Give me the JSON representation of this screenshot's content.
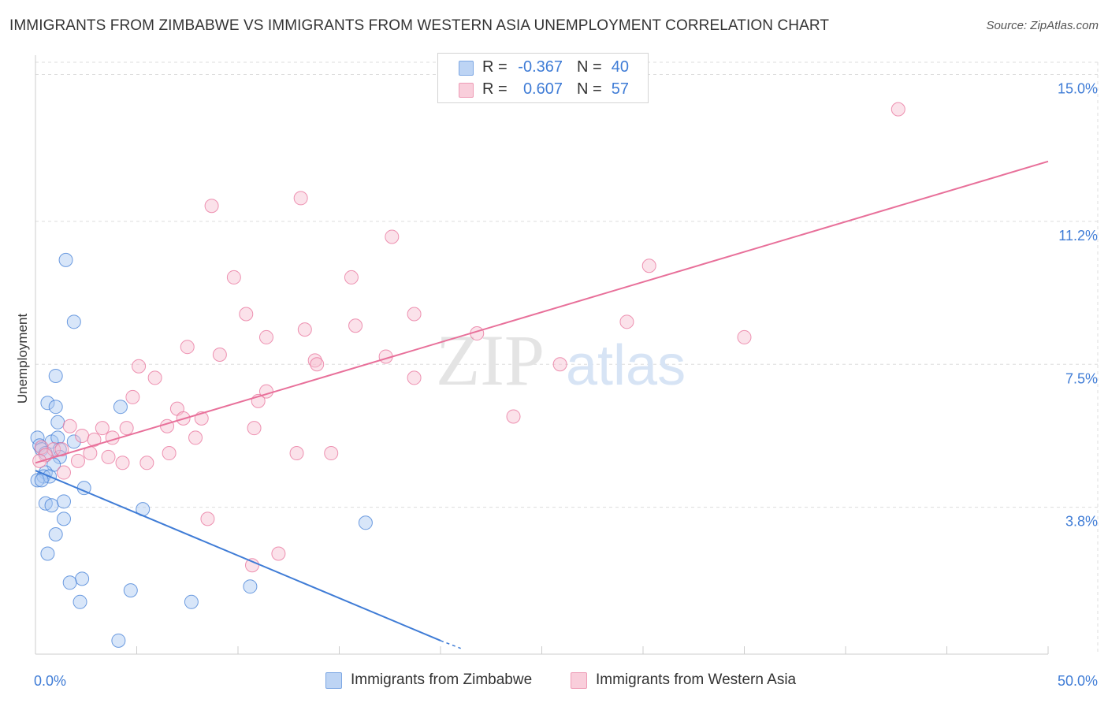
{
  "chart_data": {
    "type": "scatter",
    "title": "IMMIGRANTS FROM ZIMBABWE VS IMMIGRANTS FROM WESTERN ASIA UNEMPLOYMENT CORRELATION CHART",
    "source": "Source: ZipAtlas.com",
    "xlabel": "",
    "ylabel": "Unemployment",
    "xlim": [
      0,
      50
    ],
    "ylim": [
      0,
      15.5
    ],
    "x_tick_labels": [
      "0.0%",
      "50.0%"
    ],
    "y_ticks": [
      3.8,
      7.5,
      11.2,
      15.0
    ],
    "y_tick_labels": [
      "3.8%",
      "7.5%",
      "11.2%",
      "15.0%"
    ],
    "watermark": {
      "part1": "ZIP",
      "part2": "atlas"
    },
    "series": [
      {
        "name": "Immigrants from Zimbabwe",
        "color": "#3f7cd6",
        "fill": "#a9c7f1",
        "R": "-0.367",
        "N": "40",
        "trend": {
          "x0": 0,
          "y0": 4.75,
          "x1": 20,
          "y1": 0.35
        },
        "trend_dash": {
          "x0": 20,
          "y0": 0.35,
          "x1": 21,
          "y1": 0.15
        },
        "points": [
          [
            1.5,
            10.2
          ],
          [
            1.9,
            8.6
          ],
          [
            1.0,
            7.2
          ],
          [
            0.6,
            6.5
          ],
          [
            1.0,
            6.4
          ],
          [
            4.2,
            6.4
          ],
          [
            1.1,
            6.0
          ],
          [
            0.1,
            5.6
          ],
          [
            0.2,
            5.4
          ],
          [
            0.3,
            5.3
          ],
          [
            0.8,
            5.5
          ],
          [
            1.1,
            5.6
          ],
          [
            1.9,
            5.5
          ],
          [
            0.5,
            5.2
          ],
          [
            1.2,
            5.3
          ],
          [
            1.2,
            5.1
          ],
          [
            0.9,
            4.9
          ],
          [
            0.5,
            4.7
          ],
          [
            0.4,
            4.6
          ],
          [
            0.7,
            4.6
          ],
          [
            0.1,
            4.5
          ],
          [
            0.3,
            4.5
          ],
          [
            2.4,
            4.3
          ],
          [
            0.5,
            3.9
          ],
          [
            0.8,
            3.85
          ],
          [
            1.4,
            3.95
          ],
          [
            5.3,
            3.75
          ],
          [
            1.4,
            3.5
          ],
          [
            16.3,
            3.4
          ],
          [
            1.0,
            3.1
          ],
          [
            0.6,
            2.6
          ],
          [
            2.3,
            1.95
          ],
          [
            1.7,
            1.85
          ],
          [
            4.7,
            1.65
          ],
          [
            10.6,
            1.75
          ],
          [
            2.2,
            1.35
          ],
          [
            7.7,
            1.35
          ],
          [
            4.1,
            0.35
          ]
        ]
      },
      {
        "name": "Immigrants from Western Asia",
        "color": "#e8709a",
        "fill": "#f7bfd1",
        "R": "0.607",
        "N": "57",
        "trend": {
          "x0": 0,
          "y0": 4.95,
          "x1": 50,
          "y1": 12.75
        },
        "points": [
          [
            42.6,
            14.1
          ],
          [
            13.1,
            11.8
          ],
          [
            8.7,
            11.6
          ],
          [
            17.6,
            10.8
          ],
          [
            30.3,
            10.05
          ],
          [
            9.8,
            9.75
          ],
          [
            15.6,
            9.75
          ],
          [
            10.4,
            8.8
          ],
          [
            18.7,
            8.8
          ],
          [
            29.2,
            8.6
          ],
          [
            15.8,
            8.5
          ],
          [
            13.3,
            8.4
          ],
          [
            21.8,
            8.3
          ],
          [
            11.4,
            8.2
          ],
          [
            35.0,
            8.2
          ],
          [
            7.5,
            7.95
          ],
          [
            9.1,
            7.75
          ],
          [
            13.8,
            7.6
          ],
          [
            17.3,
            7.7
          ],
          [
            25.9,
            7.5
          ],
          [
            13.9,
            7.5
          ],
          [
            5.1,
            7.45
          ],
          [
            5.9,
            7.15
          ],
          [
            18.7,
            7.15
          ],
          [
            11.4,
            6.8
          ],
          [
            4.8,
            6.65
          ],
          [
            11.0,
            6.55
          ],
          [
            7.0,
            6.35
          ],
          [
            7.3,
            6.1
          ],
          [
            8.2,
            6.1
          ],
          [
            23.6,
            6.15
          ],
          [
            6.5,
            5.9
          ],
          [
            10.8,
            5.85
          ],
          [
            1.7,
            5.9
          ],
          [
            3.3,
            5.85
          ],
          [
            4.5,
            5.85
          ],
          [
            2.3,
            5.65
          ],
          [
            3.8,
            5.6
          ],
          [
            7.9,
            5.6
          ],
          [
            2.9,
            5.55
          ],
          [
            0.3,
            5.35
          ],
          [
            0.9,
            5.3
          ],
          [
            1.3,
            5.3
          ],
          [
            2.7,
            5.2
          ],
          [
            0.5,
            5.15
          ],
          [
            6.6,
            5.2
          ],
          [
            12.9,
            5.2
          ],
          [
            14.6,
            5.2
          ],
          [
            0.2,
            5.0
          ],
          [
            2.1,
            5.0
          ],
          [
            4.3,
            4.95
          ],
          [
            5.5,
            4.95
          ],
          [
            3.6,
            5.1
          ],
          [
            1.4,
            4.7
          ],
          [
            8.5,
            3.5
          ],
          [
            12.0,
            2.6
          ],
          [
            10.7,
            2.3
          ]
        ]
      }
    ]
  }
}
